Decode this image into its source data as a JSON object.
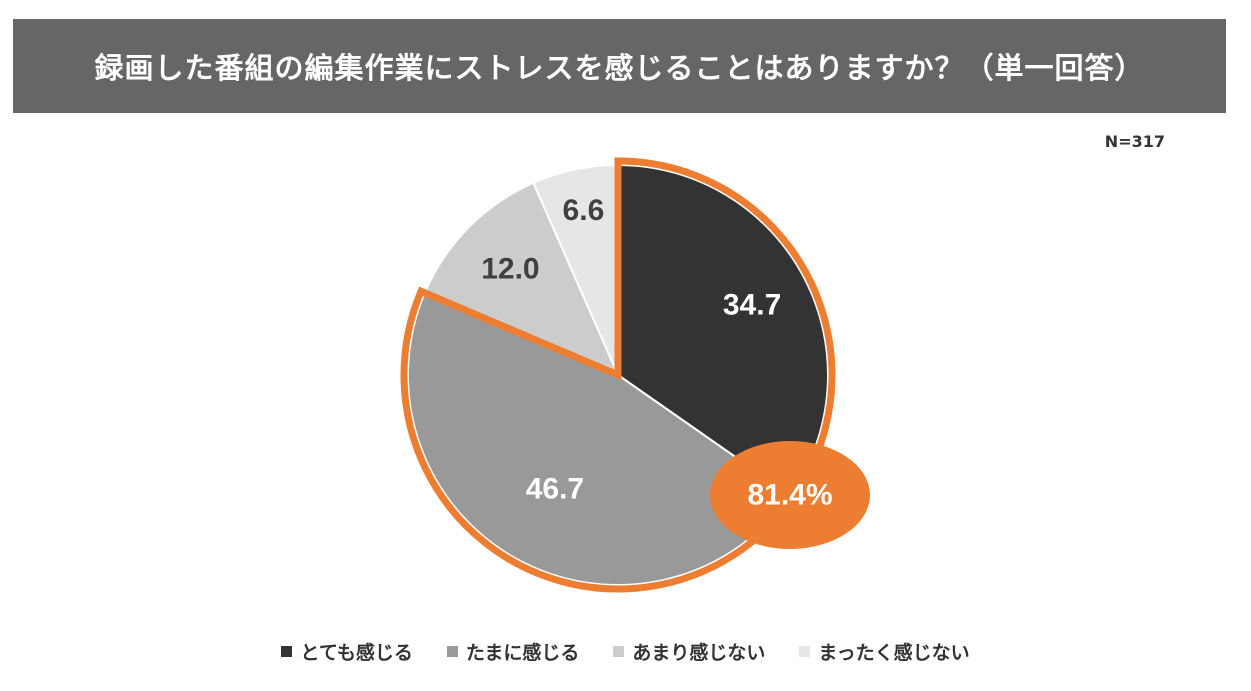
{
  "header": {
    "title": "録画した番組の編集作業にストレスを感じることはありますか？（単一回答）"
  },
  "sample_size": "N=317",
  "chart_data": {
    "type": "pie",
    "title": "録画した番組の編集作業にストレスを感じることはありますか？（単一回答）",
    "categories": [
      "とても感じる",
      "たまに感じる",
      "あまり感じない",
      "まったく感じない"
    ],
    "values": [
      34.7,
      46.7,
      12.0,
      6.6
    ],
    "value_labels": [
      "34.7",
      "46.7",
      "12.0",
      "6.6"
    ],
    "start_angle": "12 o'clock",
    "direction": "clockwise",
    "legend_position": "bottom",
    "highlight": {
      "label": "81.4%",
      "value": 81.4,
      "categories": [
        "とても感じる",
        "たまに感じる"
      ],
      "outline_color": "#ED7D31"
    }
  },
  "colors": {
    "とても感じる": "#333333",
    "たまに感じる": "#999999",
    "あまり感じない": "#CCCCCC",
    "まったく感じない": "#E6E6E6",
    "accent": "#ED7D31",
    "title_background": "#666666"
  },
  "legend": {
    "items": [
      {
        "label": "とても感じる",
        "color": "#333333"
      },
      {
        "label": "たまに感じる",
        "color": "#999999"
      },
      {
        "label": "あまり感じない",
        "color": "#CCCCCC"
      },
      {
        "label": "まったく感じない",
        "color": "#E6E6E6"
      }
    ]
  }
}
